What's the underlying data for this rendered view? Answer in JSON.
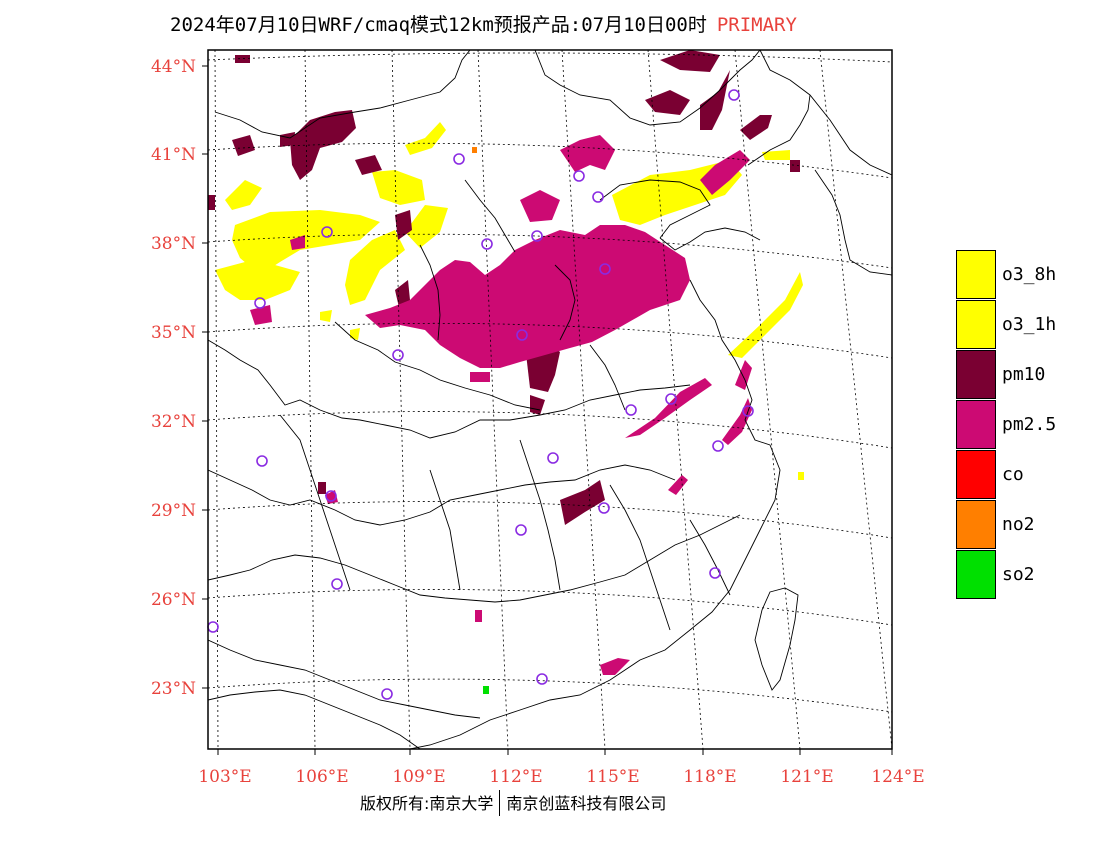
{
  "title": {
    "main": "2024年07月10日WRF/cmaq模式12km预报产品:07月10日00时",
    "tag": "PRIMARY"
  },
  "colors": {
    "o3_8h": "#ffff00",
    "o3_1h": "#ffff00",
    "pm10": "#7a0032",
    "pm2_5": "#cc0a73",
    "co": "#ff0000",
    "no2": "#ff7f00",
    "so2": "#00e000",
    "axis_label": "#e8423c",
    "station": "#8a2be2"
  },
  "axes": {
    "lat_labels": [
      "44°N",
      "41°N",
      "38°N",
      "35°N",
      "32°N",
      "29°N",
      "26°N",
      "23°N"
    ],
    "lon_labels": [
      "103°E",
      "106°E",
      "109°E",
      "112°E",
      "115°E",
      "118°E",
      "121°E",
      "124°E"
    ]
  },
  "legend": [
    {
      "label": "o3_8h",
      "color": "#ffff00"
    },
    {
      "label": "o3_1h",
      "color": "#ffff00"
    },
    {
      "label": "pm10",
      "color": "#7a0032"
    },
    {
      "label": "pm2.5",
      "color": "#cc0a73"
    },
    {
      "label": "co",
      "color": "#ff0000"
    },
    {
      "label": "no2",
      "color": "#ff7f00"
    },
    {
      "label": "so2",
      "color": "#00e000"
    }
  ],
  "footer": {
    "left": "版权所有:南京大学",
    "right": "南京创蓝科技有限公司"
  }
}
